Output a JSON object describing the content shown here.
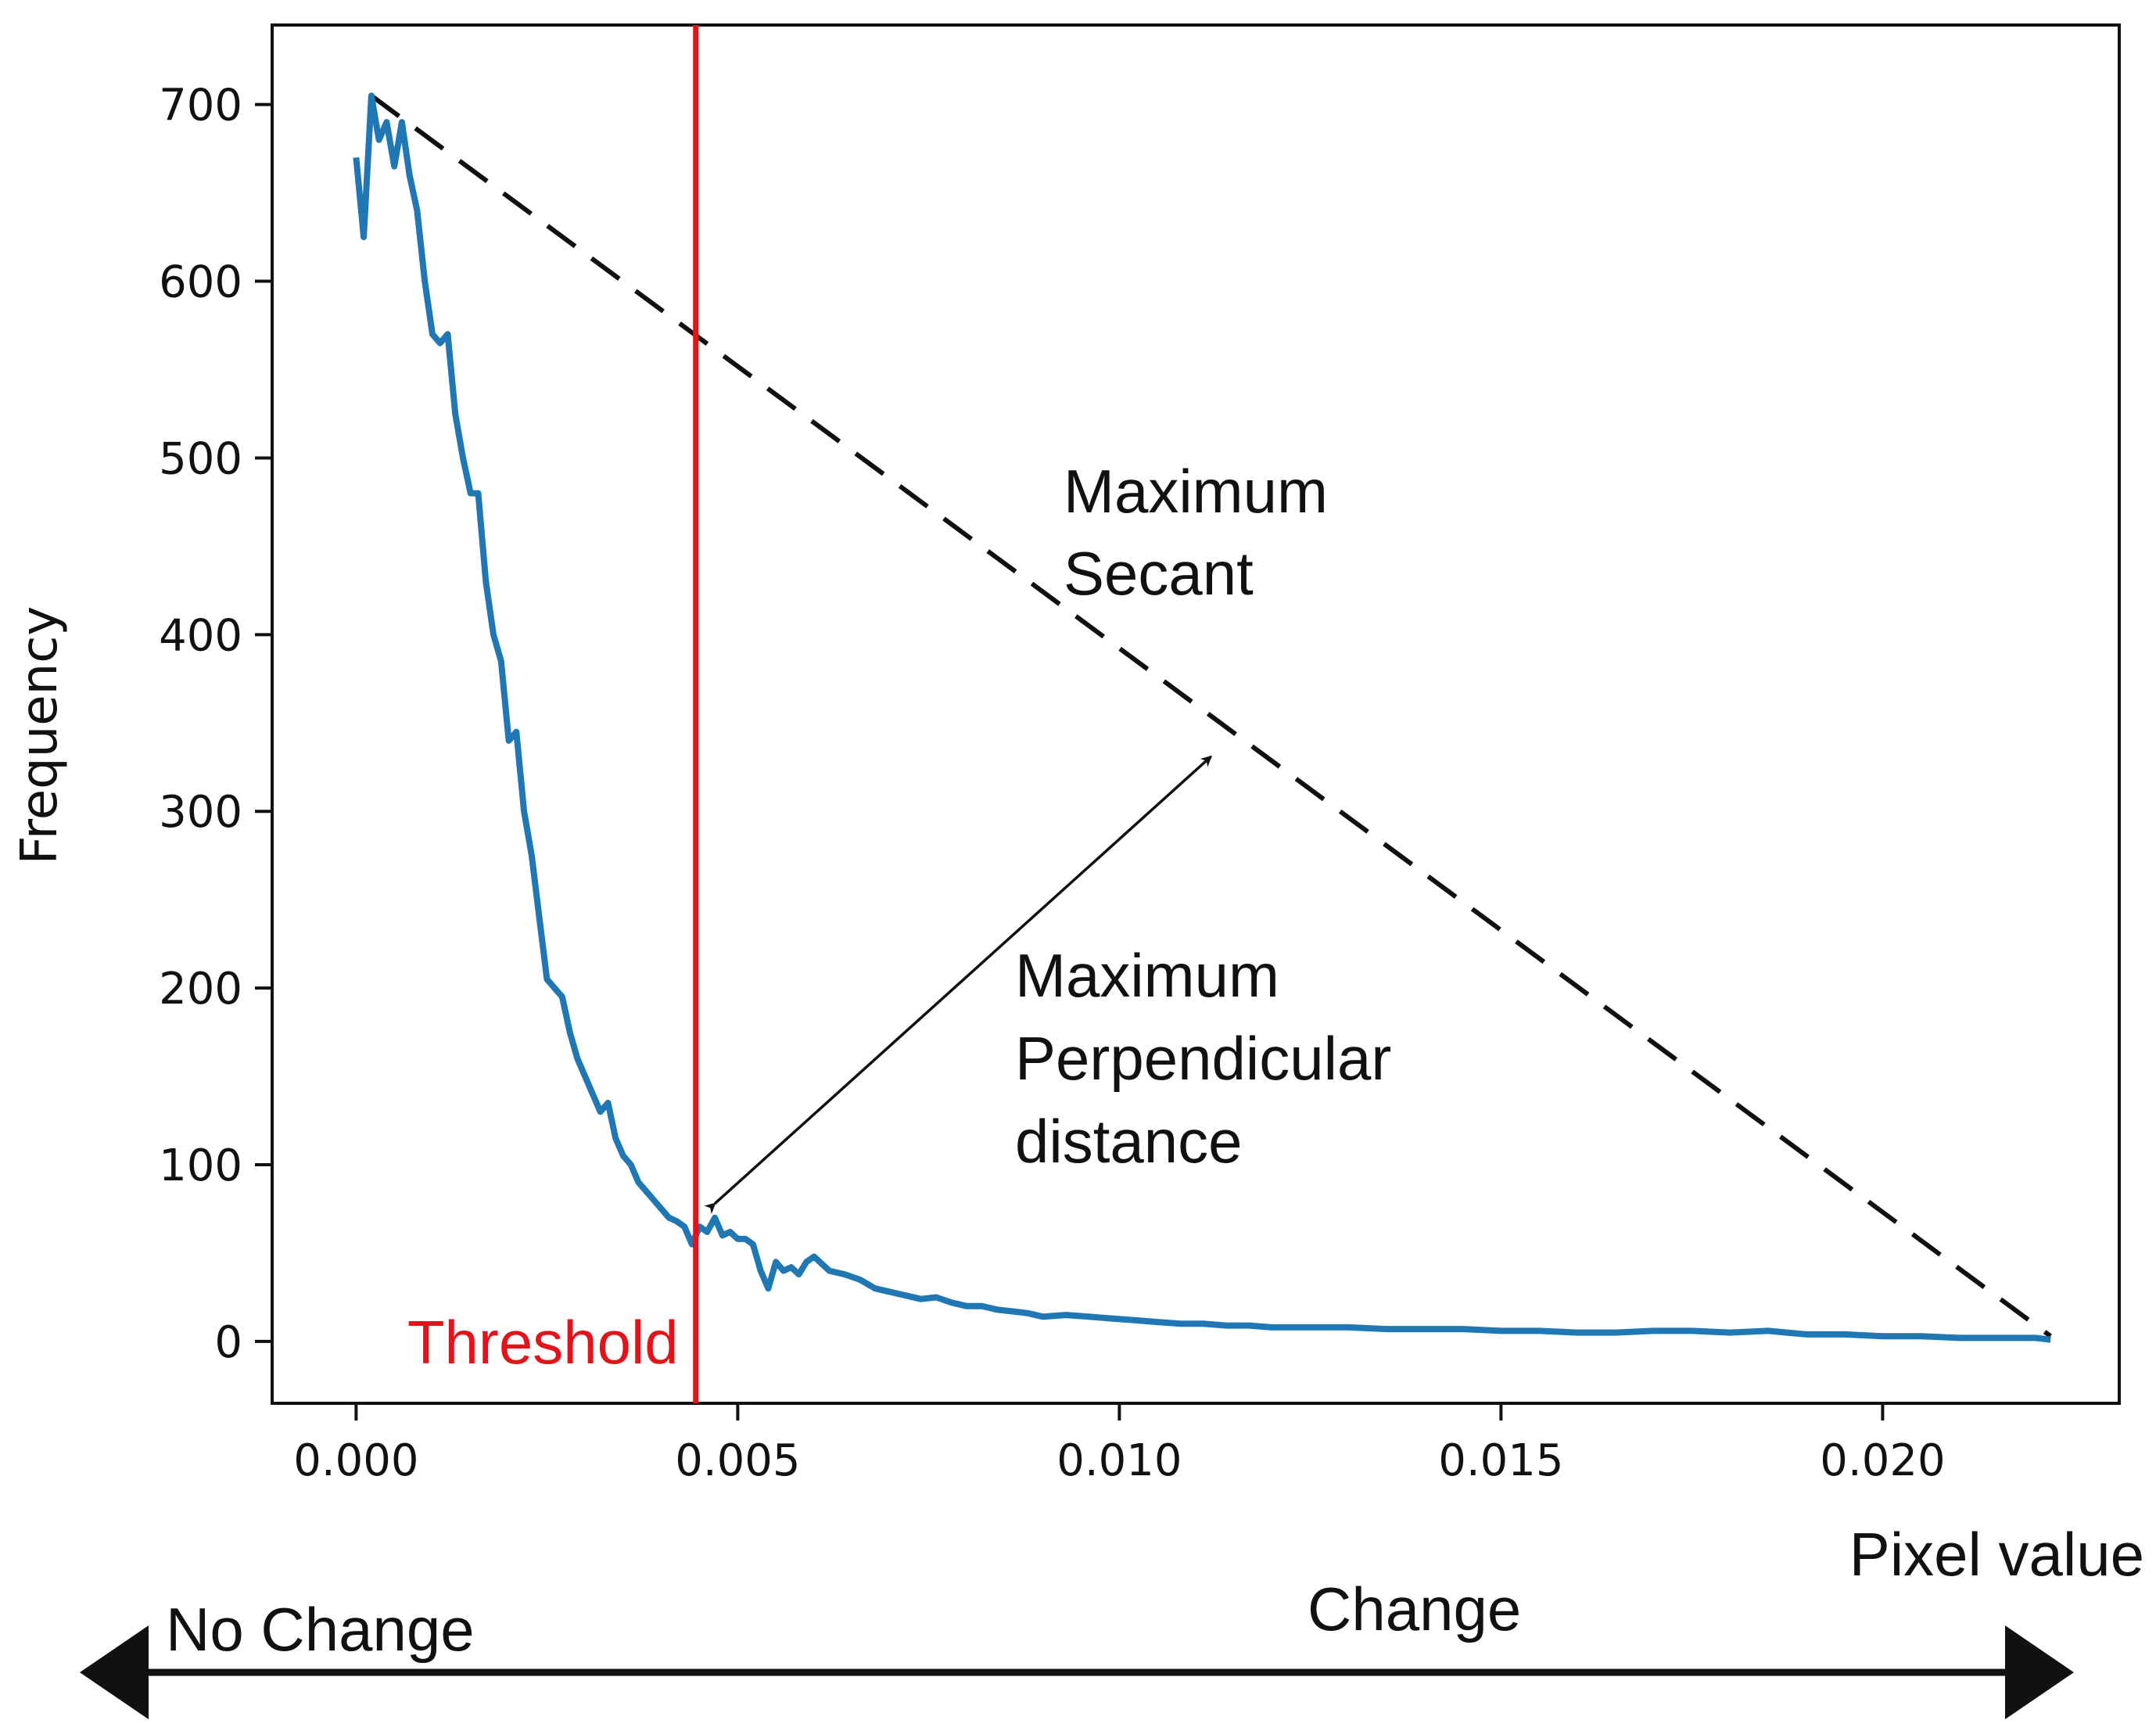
{
  "chart_data": {
    "type": "line",
    "title": "",
    "xlabel": "Pixel value",
    "ylabel": "Frequency",
    "xlim": [
      -0.0011,
      0.0231
    ],
    "ylim": [
      -35,
      745
    ],
    "x_ticks": [
      {
        "value": 0.0,
        "label": "0.000"
      },
      {
        "value": 0.005,
        "label": "0.005"
      },
      {
        "value": 0.01,
        "label": "0.010"
      },
      {
        "value": 0.015,
        "label": "0.015"
      },
      {
        "value": 0.02,
        "label": "0.020"
      }
    ],
    "y_ticks": [
      {
        "value": 0,
        "label": "0"
      },
      {
        "value": 100,
        "label": "100"
      },
      {
        "value": 200,
        "label": "200"
      },
      {
        "value": 300,
        "label": "300"
      },
      {
        "value": 400,
        "label": "400"
      },
      {
        "value": 500,
        "label": "500"
      },
      {
        "value": 600,
        "label": "600"
      },
      {
        "value": 700,
        "label": "700"
      }
    ],
    "grid": false,
    "series": [
      {
        "color": "#1f77b4",
        "x": [
          0.0,
          0.0001,
          0.0002,
          0.0003,
          0.0004,
          0.0005,
          0.0006,
          0.0007,
          0.0008,
          0.0009,
          0.001,
          0.0011,
          0.0012,
          0.0013,
          0.0014,
          0.0015,
          0.0016,
          0.0017,
          0.0018,
          0.0019,
          0.002,
          0.0021,
          0.0022,
          0.0023,
          0.0024,
          0.0025,
          0.0026,
          0.0027,
          0.0028,
          0.0029,
          0.003,
          0.0031,
          0.0032,
          0.0033,
          0.0034,
          0.0035,
          0.0036,
          0.0037,
          0.0038,
          0.0039,
          0.004,
          0.0041,
          0.0042,
          0.0043,
          0.0044,
          0.0045,
          0.0046,
          0.0047,
          0.0048,
          0.0049,
          0.005,
          0.0051,
          0.0052,
          0.0053,
          0.0054,
          0.0055,
          0.0056,
          0.0057,
          0.0058,
          0.0059,
          0.006,
          0.0062,
          0.0064,
          0.0066,
          0.0068,
          0.007,
          0.0072,
          0.0074,
          0.0076,
          0.0078,
          0.008,
          0.0082,
          0.0084,
          0.0086,
          0.0088,
          0.009,
          0.0093,
          0.0096,
          0.0099,
          0.0102,
          0.0105,
          0.0108,
          0.0111,
          0.0114,
          0.0117,
          0.012,
          0.0125,
          0.013,
          0.0135,
          0.014,
          0.0145,
          0.015,
          0.0155,
          0.016,
          0.0165,
          0.017,
          0.0175,
          0.018,
          0.0185,
          0.019,
          0.0195,
          0.02,
          0.0205,
          0.021,
          0.0215,
          0.022,
          0.0222
        ],
        "y": [
          670,
          625,
          705,
          680,
          690,
          665,
          690,
          660,
          640,
          600,
          570,
          565,
          570,
          525,
          500,
          480,
          480,
          430,
          400,
          385,
          340,
          345,
          300,
          275,
          240,
          205,
          200,
          195,
          175,
          160,
          150,
          140,
          130,
          135,
          115,
          105,
          100,
          90,
          85,
          80,
          75,
          70,
          68,
          65,
          55,
          65,
          62,
          70,
          60,
          62,
          58,
          58,
          55,
          40,
          30,
          45,
          40,
          42,
          38,
          45,
          48,
          40,
          38,
          35,
          30,
          28,
          26,
          24,
          25,
          22,
          20,
          20,
          18,
          17,
          16,
          14,
          15,
          14,
          13,
          12,
          11,
          10,
          10,
          9,
          9,
          8,
          8,
          8,
          7,
          7,
          7,
          6,
          6,
          5,
          5,
          6,
          6,
          5,
          6,
          4,
          4,
          3,
          3,
          2,
          2,
          2,
          1
        ]
      }
    ],
    "threshold": {
      "x": 0.00445,
      "label": "Threshold",
      "color": "#e3131b"
    },
    "secant": {
      "x1": 0.0002,
      "y1": 705,
      "x2": 0.0222,
      "y2": 3,
      "label_line1": "Maximum",
      "label_line2": "Secant"
    },
    "perpendicular": {
      "x1": 0.0047,
      "y1": 78,
      "x2": 0.0112,
      "y2": 331,
      "label_line1": "Maximum",
      "label_line2": "Perpendicular",
      "label_line3": "distance"
    },
    "bottom_axis": {
      "left_label": "No Change",
      "right_label": "Change"
    }
  }
}
